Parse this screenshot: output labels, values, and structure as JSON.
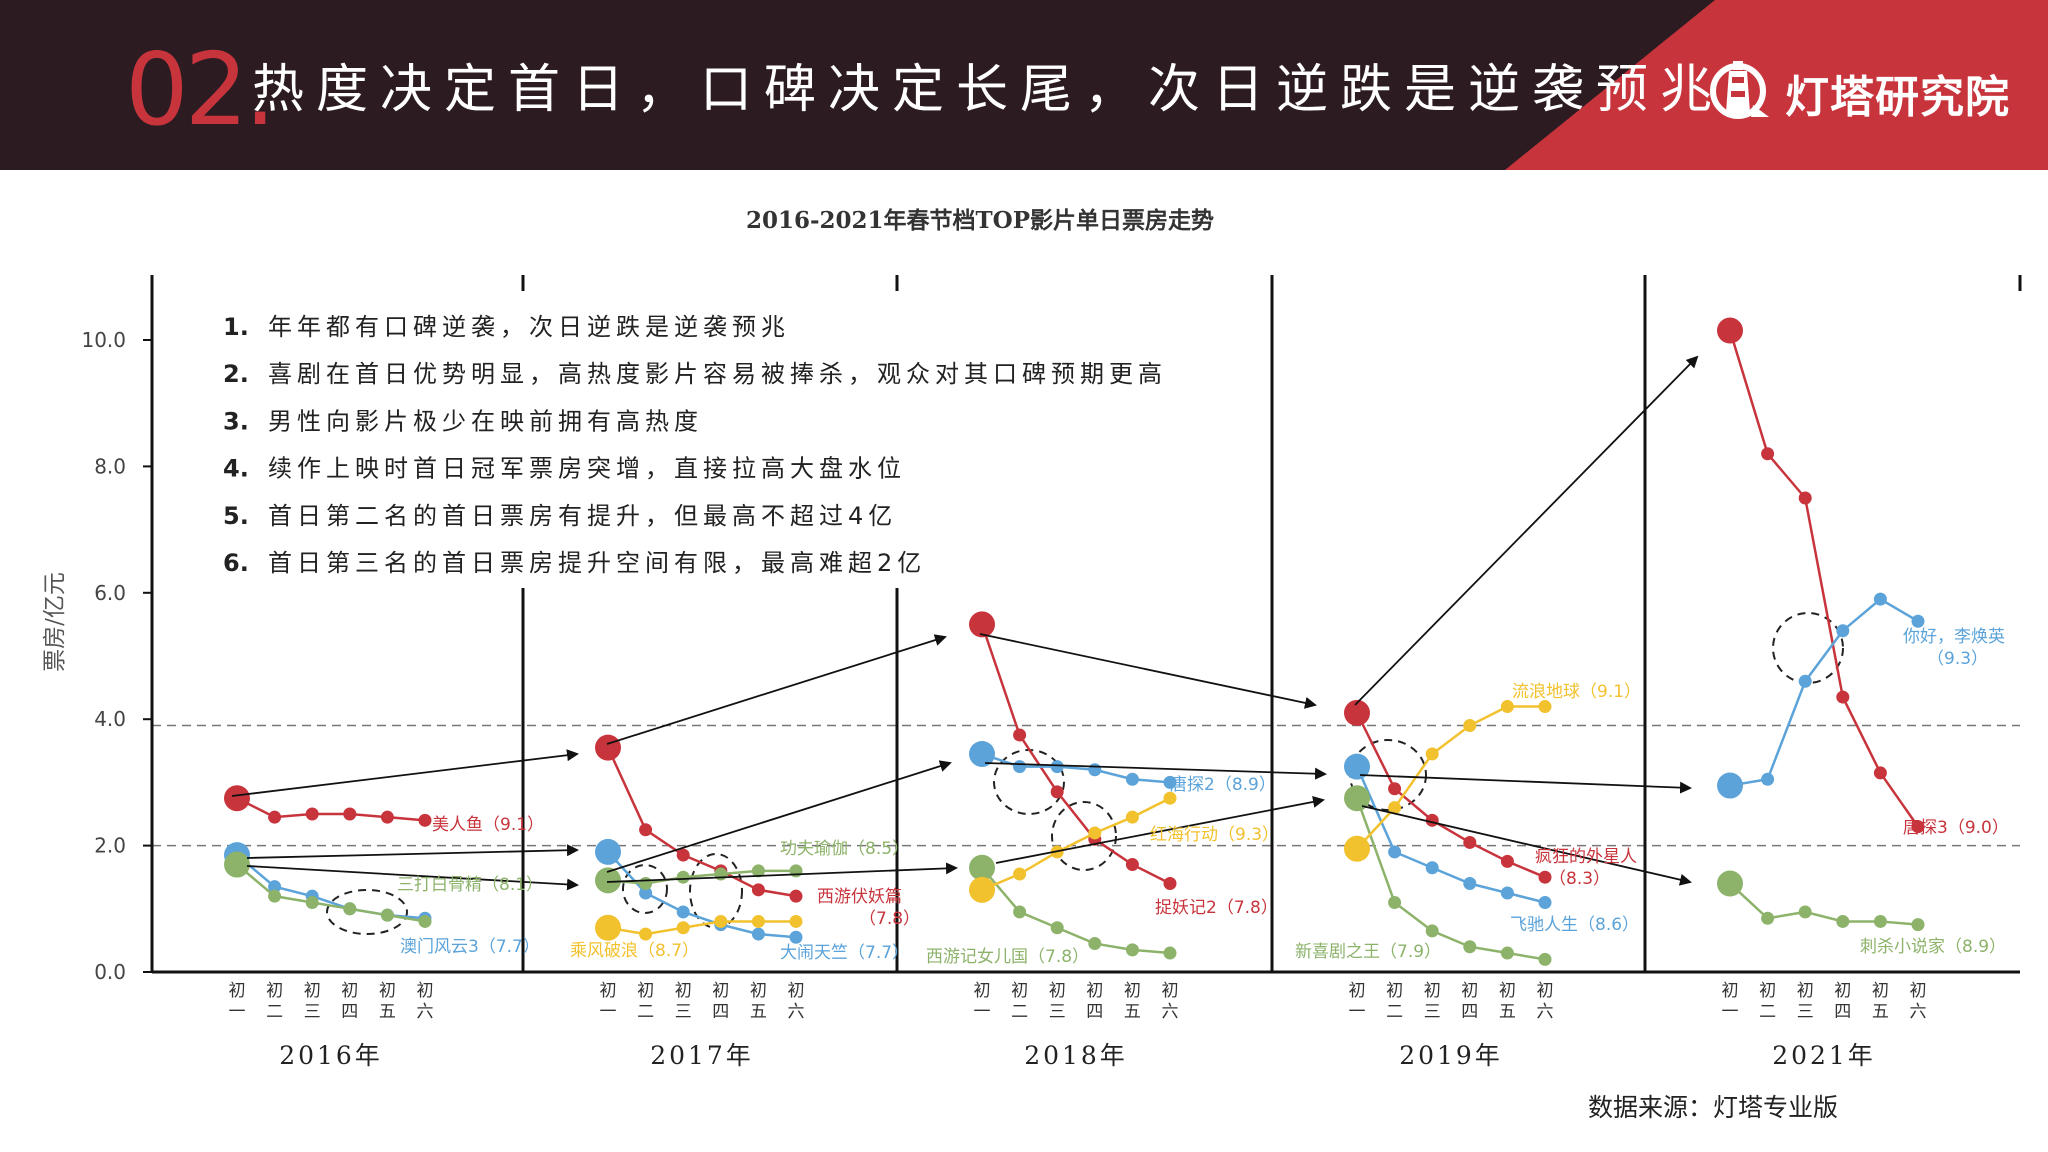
{
  "header": {
    "section_number": "02.",
    "title": "热度决定首日，口碑决定长尾，次日逆跌是逆袭预兆",
    "brand": "灯塔研究院"
  },
  "footer": {
    "source": "数据来源：灯塔专业版"
  },
  "colors": {
    "header_bg": "#2c1c22",
    "accent_red": "#c8343c",
    "red": "#c8343c",
    "blue": "#5ba3d9",
    "green": "#8db36b",
    "yellow": "#f2c12e"
  },
  "chart_data": {
    "type": "line",
    "title": "2016-2021年春节档TOP影片单日票房走势",
    "ylabel": "票房/亿元",
    "ylim": [
      0,
      10.5
    ],
    "yticks": [
      "0.0",
      "2.0",
      "4.0",
      "6.0",
      "8.0",
      "10.0"
    ],
    "reference_lines": [
      3.9,
      2.0
    ],
    "day_labels": [
      [
        "初",
        "一"
      ],
      [
        "初",
        "二"
      ],
      [
        "初",
        "三"
      ],
      [
        "初",
        "四"
      ],
      [
        "初",
        "五"
      ],
      [
        "初",
        "六"
      ]
    ],
    "notes": [
      {
        "num": "1.",
        "text": "年年都有口碑逆袭，次日逆跌是逆袭预兆"
      },
      {
        "num": "2.",
        "text": "喜剧在首日优势明显，高热度影片容易被捧杀，观众对其口碑预期更高"
      },
      {
        "num": "3.",
        "text": "男性向影片极少在映前拥有高热度"
      },
      {
        "num": "4.",
        "text": "续作上映时首日冠军票房突增，直接拉高大盘水位"
      },
      {
        "num": "5.",
        "text": "首日第二名的首日票房有提升，但最高不超过4亿"
      },
      {
        "num": "6.",
        "text": "首日第三名的首日票房提升空间有限，最高难超2亿"
      }
    ],
    "panels": [
      {
        "year": "2016年",
        "series": [
          {
            "name": "美人鱼（9.1）",
            "color": "red",
            "values": [
              2.75,
              2.45,
              2.5,
              2.5,
              2.45,
              2.4
            ]
          },
          {
            "name": "澳门风云3（7.7）",
            "color": "blue",
            "values": [
              1.85,
              1.35,
              1.2,
              1.0,
              0.9,
              0.85
            ]
          },
          {
            "name": "三打白骨精（8.1）",
            "color": "green",
            "values": [
              1.7,
              1.2,
              1.1,
              1.0,
              0.9,
              0.8
            ]
          }
        ]
      },
      {
        "year": "2017年",
        "series": [
          {
            "name": "西游伏妖篇（7.8）",
            "color": "red",
            "values": [
              3.55,
              2.25,
              1.85,
              1.6,
              1.3,
              1.2
            ]
          },
          {
            "name": "大闹天竺（7.7）",
            "color": "blue",
            "values": [
              1.9,
              1.25,
              0.95,
              0.75,
              0.6,
              0.55
            ]
          },
          {
            "name": "功夫瑜伽（8.5）",
            "color": "green",
            "values": [
              1.45,
              1.4,
              1.5,
              1.55,
              1.6,
              1.6
            ]
          },
          {
            "name": "乘风破浪（8.7）",
            "color": "yellow",
            "values": [
              0.7,
              0.6,
              0.7,
              0.8,
              0.8,
              0.8
            ]
          }
        ]
      },
      {
        "year": "2018年",
        "series": [
          {
            "name": "捉妖记2（7.8）",
            "color": "red",
            "values": [
              5.5,
              3.75,
              2.85,
              2.1,
              1.7,
              1.4
            ]
          },
          {
            "name": "唐探2（8.9）",
            "color": "blue",
            "values": [
              3.45,
              3.25,
              3.25,
              3.2,
              3.05,
              3.0
            ]
          },
          {
            "name": "西游记女儿国（7.8）",
            "color": "green",
            "values": [
              1.65,
              0.95,
              0.7,
              0.45,
              0.35,
              0.3
            ]
          },
          {
            "name": "红海行动（9.3）",
            "color": "yellow",
            "values": [
              1.3,
              1.55,
              1.9,
              2.2,
              2.45,
              2.75
            ]
          }
        ]
      },
      {
        "year": "2019年",
        "series": [
          {
            "name": "疯狂的外星人（8.3）",
            "color": "red",
            "values": [
              4.1,
              2.9,
              2.4,
              2.05,
              1.75,
              1.5
            ]
          },
          {
            "name": "飞驰人生（8.6）",
            "color": "blue",
            "values": [
              3.25,
              1.9,
              1.65,
              1.4,
              1.25,
              1.1
            ]
          },
          {
            "name": "新喜剧之王（7.9）",
            "color": "green",
            "values": [
              2.75,
              1.1,
              0.65,
              0.4,
              0.3,
              0.2
            ]
          },
          {
            "name": "流浪地球（9.1）",
            "color": "yellow",
            "values": [
              1.95,
              2.6,
              3.45,
              3.9,
              4.2,
              4.2
            ]
          }
        ]
      },
      {
        "year": "2021年",
        "series": [
          {
            "name": "唐探3（9.0）",
            "color": "red",
            "values": [
              10.15,
              8.2,
              7.5,
              4.35,
              3.15,
              2.3
            ]
          },
          {
            "name": "你好，李焕英（9.3）",
            "color": "blue",
            "values": [
              2.95,
              3.05,
              4.6,
              5.4,
              5.9,
              5.55
            ]
          },
          {
            "name": "刺杀小说家（8.9）",
            "color": "green",
            "values": [
              1.4,
              0.85,
              0.95,
              0.8,
              0.8,
              0.75
            ]
          }
        ]
      }
    ]
  }
}
